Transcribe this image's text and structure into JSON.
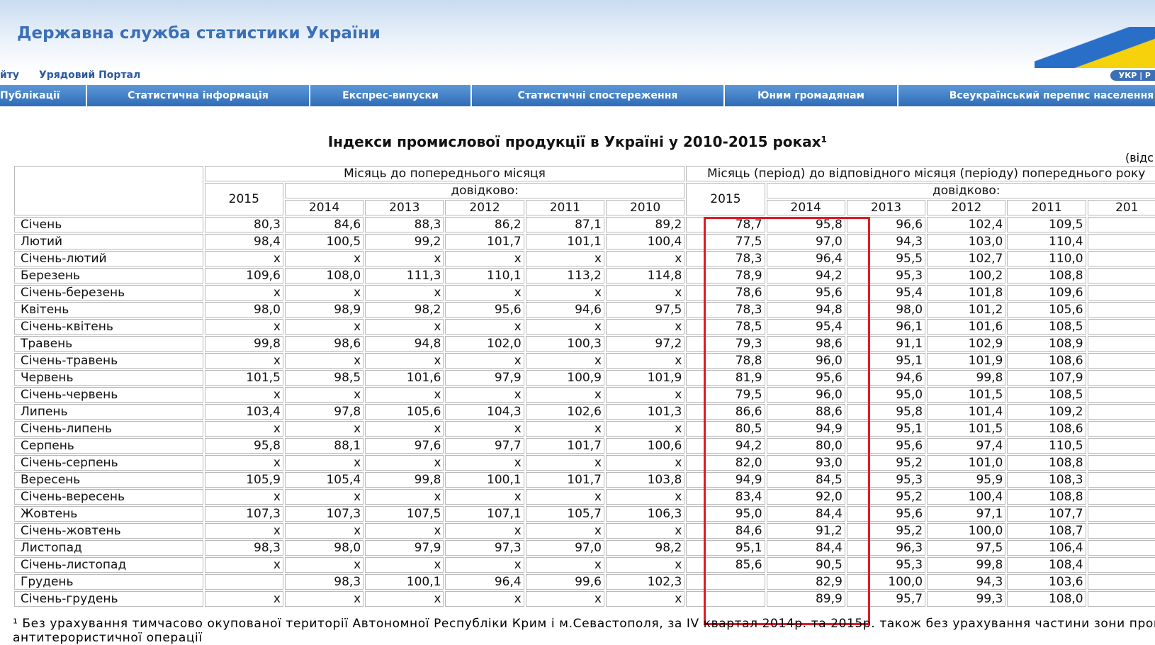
{
  "header": {
    "site_title": "Державна служба статистики України",
    "links": [
      "йту",
      "Урядовий Портал"
    ],
    "lang": "УКР | Р"
  },
  "nav": [
    "Публікації",
    "Статистична інформація",
    "Експрес-випуски",
    "Статистичні спостереження",
    "Юним громадянам",
    "Всеукраїнський перепис населення"
  ],
  "title": "Індекси промислової продукції в Україні у 2010-2015 роках¹",
  "unit": "(відс",
  "table": {
    "groups": [
      {
        "label": "Місяць до попереднього місяця",
        "current": "2015",
        "reference_label": "довідково:",
        "years": [
          "2014",
          "2013",
          "2012",
          "2011",
          "2010"
        ]
      },
      {
        "label": "Місяць (період) до відповідного місяця (періоду) попереднього року",
        "current": "2015",
        "reference_label": "довідково:",
        "years": [
          "2014",
          "2013",
          "2012",
          "2011",
          "201"
        ]
      }
    ],
    "rows": [
      {
        "label": "Січень",
        "values": [
          "80,3",
          "84,6",
          "88,3",
          "86,2",
          "87,1",
          "89,2",
          "78,7",
          "95,8",
          "96,6",
          "102,4",
          "109,5"
        ]
      },
      {
        "label": "Лютий",
        "values": [
          "98,4",
          "100,5",
          "99,2",
          "101,7",
          "101,1",
          "100,4",
          "77,5",
          "97,0",
          "94,3",
          "103,0",
          "110,4"
        ]
      },
      {
        "label": "Січень-лютий",
        "values": [
          "x",
          "x",
          "x",
          "x",
          "x",
          "x",
          "78,3",
          "96,4",
          "95,5",
          "102,7",
          "110,0"
        ]
      },
      {
        "label": "Березень",
        "values": [
          "109,6",
          "108,0",
          "111,3",
          "110,1",
          "113,2",
          "114,8",
          "78,9",
          "94,2",
          "95,3",
          "100,2",
          "108,8"
        ]
      },
      {
        "label": "Січень-березень",
        "values": [
          "x",
          "x",
          "x",
          "x",
          "x",
          "x",
          "78,6",
          "95,6",
          "95,4",
          "101,8",
          "109,6"
        ]
      },
      {
        "label": "Квітень",
        "values": [
          "98,0",
          "98,9",
          "98,2",
          "95,6",
          "94,6",
          "97,5",
          "78,3",
          "94,8",
          "98,0",
          "101,2",
          "105,6"
        ]
      },
      {
        "label": "Січень-квітень",
        "values": [
          "x",
          "x",
          "x",
          "x",
          "x",
          "x",
          "78,5",
          "95,4",
          "96,1",
          "101,6",
          "108,5"
        ]
      },
      {
        "label": "Травень",
        "values": [
          "99,8",
          "98,6",
          "94,8",
          "102,0",
          "100,3",
          "97,2",
          "79,3",
          "98,6",
          "91,1",
          "102,9",
          "108,9"
        ]
      },
      {
        "label": "Січень-травень",
        "values": [
          "x",
          "x",
          "x",
          "x",
          "x",
          "x",
          "78,8",
          "96,0",
          "95,1",
          "101,9",
          "108,6"
        ]
      },
      {
        "label": "Червень",
        "values": [
          "101,5",
          "98,5",
          "101,6",
          "97,9",
          "100,9",
          "101,9",
          "81,9",
          "95,6",
          "94,6",
          "99,8",
          "107,9"
        ]
      },
      {
        "label": "Січень-червень",
        "values": [
          "x",
          "x",
          "x",
          "x",
          "x",
          "x",
          "79,5",
          "96,0",
          "95,0",
          "101,5",
          "108,5"
        ]
      },
      {
        "label": "Липень",
        "values": [
          "103,4",
          "97,8",
          "105,6",
          "104,3",
          "102,6",
          "101,3",
          "86,6",
          "88,6",
          "95,8",
          "101,4",
          "109,2"
        ]
      },
      {
        "label": "Січень-липень",
        "values": [
          "x",
          "x",
          "x",
          "x",
          "x",
          "x",
          "80,5",
          "94,9",
          "95,1",
          "101,5",
          "108,6"
        ]
      },
      {
        "label": "Серпень",
        "values": [
          "95,8",
          "88,1",
          "97,6",
          "97,7",
          "101,7",
          "100,6",
          "94,2",
          "80,0",
          "95,6",
          "97,4",
          "110,5"
        ]
      },
      {
        "label": "Січень-серпень",
        "values": [
          "x",
          "x",
          "x",
          "x",
          "x",
          "x",
          "82,0",
          "93,0",
          "95,2",
          "101,0",
          "108,8"
        ]
      },
      {
        "label": "Вересень",
        "values": [
          "105,9",
          "105,4",
          "99,8",
          "100,1",
          "101,7",
          "103,8",
          "94,9",
          "84,5",
          "95,3",
          "95,9",
          "108,3"
        ]
      },
      {
        "label": "Січень-вересень",
        "values": [
          "x",
          "x",
          "x",
          "x",
          "x",
          "x",
          "83,4",
          "92,0",
          "95,2",
          "100,4",
          "108,8"
        ]
      },
      {
        "label": "Жовтень",
        "values": [
          "107,3",
          "107,3",
          "107,5",
          "107,1",
          "105,7",
          "106,3",
          "95,0",
          "84,4",
          "95,6",
          "97,1",
          "107,7"
        ]
      },
      {
        "label": "Січень-жовтень",
        "values": [
          "x",
          "x",
          "x",
          "x",
          "x",
          "x",
          "84,6",
          "91,2",
          "95,2",
          "100,0",
          "108,7"
        ]
      },
      {
        "label": "Листопад",
        "values": [
          "98,3",
          "98,0",
          "97,9",
          "97,3",
          "97,0",
          "98,2",
          "95,1",
          "84,4",
          "96,3",
          "97,5",
          "106,4"
        ]
      },
      {
        "label": "Січень-листопад",
        "values": [
          "x",
          "x",
          "x",
          "x",
          "x",
          "x",
          "85,6",
          "90,5",
          "95,3",
          "99,8",
          "108,4"
        ]
      },
      {
        "label": "Грудень",
        "values": [
          null,
          "98,3",
          "100,1",
          "96,4",
          "99,6",
          "102,3",
          null,
          "82,9",
          "100,0",
          "94,3",
          "103,6"
        ]
      },
      {
        "label": "Січень-грудень",
        "values": [
          "x",
          "x",
          "x",
          "x",
          "x",
          "x",
          null,
          "89,9",
          "95,7",
          "99,3",
          "108,0"
        ]
      }
    ]
  },
  "footnote": [
    "¹ Без урахування тимчасово окупованої території Автономної Республіки Крим і м.Севастополя, за IV квартал 2014р. та 2015р. також без урахування частини зони прове",
    "антитерористичної операції"
  ]
}
